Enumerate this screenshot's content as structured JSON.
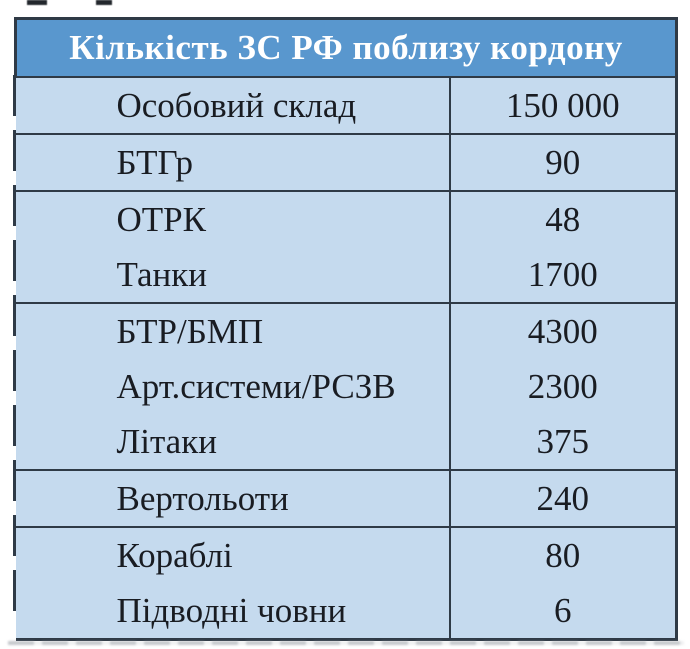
{
  "title": "Кількість ЗС РФ поблизу кордону",
  "colors": {
    "header_bg": "#5997ce",
    "row_bg": "#c5daee",
    "border": "#2f3a46",
    "text": "#191c22",
    "header_text": "#ffffff"
  },
  "table": {
    "groups": [
      {
        "lines": [
          {
            "label": "Особовий склад",
            "value": "150 000"
          }
        ]
      },
      {
        "lines": [
          {
            "label": "БТГр",
            "value": "90"
          }
        ]
      },
      {
        "lines": [
          {
            "label": "ОТРК",
            "value": "48"
          },
          {
            "label": "Танки",
            "value": "1700"
          }
        ]
      },
      {
        "lines": [
          {
            "label": "БТР/БМП",
            "value": "4300"
          },
          {
            "label": "Арт.системи/РСЗВ",
            "value": "2300"
          },
          {
            "label": "Літаки",
            "value": "375"
          }
        ]
      },
      {
        "lines": [
          {
            "label": "Вертольоти",
            "value": "240"
          }
        ]
      },
      {
        "lines": [
          {
            "label": "Кораблі",
            "value": "80"
          },
          {
            "label": "Підводні човни",
            "value": "6"
          }
        ]
      }
    ]
  },
  "chart_data": {
    "type": "table",
    "title": "Кількість ЗС РФ поблизу кордону",
    "rows": [
      [
        "Особовий склад",
        "150 000"
      ],
      [
        "БТГр",
        "90"
      ],
      [
        "ОТРК",
        "48"
      ],
      [
        "Танки",
        "1700"
      ],
      [
        "БТР/БМП",
        "4300"
      ],
      [
        "Арт.системи/РСЗВ",
        "2300"
      ],
      [
        "Літаки",
        "375"
      ],
      [
        "Вертольоти",
        "240"
      ],
      [
        "Кораблі",
        "80"
      ],
      [
        "Підводні човни",
        "6"
      ]
    ]
  }
}
